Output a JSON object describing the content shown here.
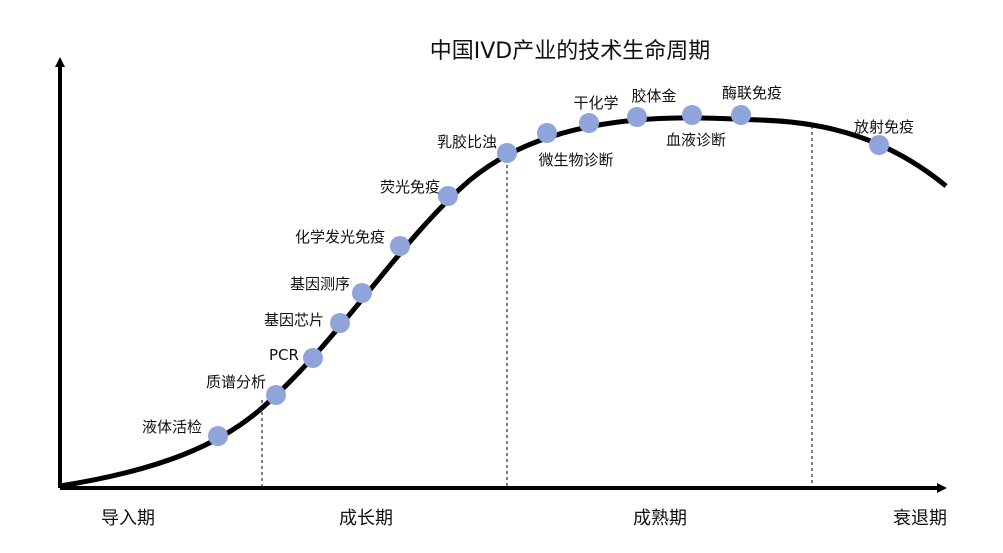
{
  "title": "中国IVD产业的技术生命周期",
  "phases": [
    "导入期",
    "成长期",
    "成熟期",
    "衰退期"
  ],
  "technologies": [
    {
      "name": "液体活检",
      "phase": "导入期"
    },
    {
      "name": "质谱分析",
      "phase": "成长期"
    },
    {
      "name": "PCR",
      "phase": "成长期"
    },
    {
      "name": "基因芯片",
      "phase": "成长期"
    },
    {
      "name": "基因测序",
      "phase": "成长期"
    },
    {
      "name": "化学发光免疫",
      "phase": "成长期"
    },
    {
      "name": "荧光免疫",
      "phase": "成长期"
    },
    {
      "name": "乳胶比浊",
      "phase": "成熟期"
    },
    {
      "name": "微生物诊断",
      "phase": "成熟期"
    },
    {
      "name": "干化学",
      "phase": "成熟期"
    },
    {
      "name": "胶体金",
      "phase": "成熟期"
    },
    {
      "name": "血液诊断",
      "phase": "成熟期"
    },
    {
      "name": "酶联免疫",
      "phase": "成熟期"
    },
    {
      "name": "放射免疫",
      "phase": "衰退期"
    }
  ],
  "colors": {
    "curve": "#000000",
    "node": "#8FA4DB",
    "axis": "#000000"
  }
}
